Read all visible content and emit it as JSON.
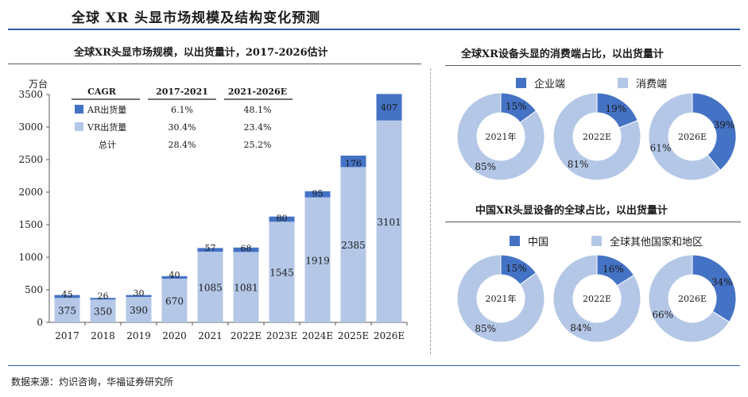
{
  "title": "全球 XR 头显市场规模及结构变化预测",
  "source": "数据来源：灼识咨询，华福证券研究所",
  "colors": {
    "ar": "#4472c4",
    "vr": "#b4c7e7",
    "rule": "#2e5fa8",
    "axis": "#595959"
  },
  "chart_data": [
    {
      "type": "bar",
      "stacked": true,
      "title": "全球XR头显市场规模，以出货量计，2017-2026估计",
      "ylabel": "万台",
      "ylim": [
        0,
        3500
      ],
      "yticks": [
        0,
        500,
        1000,
        1500,
        2000,
        2500,
        3000,
        3500
      ],
      "categories": [
        "2017",
        "2018",
        "2019",
        "2020",
        "2021",
        "2022E",
        "2023E",
        "2024E",
        "2025E",
        "2026E"
      ],
      "series": [
        {
          "name": "VR出货量",
          "values": [
            375,
            350,
            390,
            670,
            1085,
            1081,
            1545,
            1919,
            2385,
            3101
          ]
        },
        {
          "name": "AR出货量",
          "values": [
            45,
            26,
            30,
            40,
            57,
            68,
            80,
            95,
            176,
            407
          ]
        }
      ],
      "cagr_table": {
        "headers": [
          "CAGR",
          "2017-2021",
          "2021-2026E"
        ],
        "rows": [
          {
            "label": "AR出货量",
            "c1": "6.1%",
            "c2": "48.1%"
          },
          {
            "label": "VR出货量",
            "c1": "30.4%",
            "c2": "23.4%"
          },
          {
            "label": "总计",
            "c1": "28.4%",
            "c2": "25.2%"
          }
        ]
      }
    },
    {
      "type": "pie",
      "title": "全球XR设备头显的消费端占比，以出货量计",
      "legend": [
        "企业端",
        "消费端"
      ],
      "charts": [
        {
          "center": "2021年",
          "values": [
            15,
            85
          ],
          "labels": [
            "15%",
            "85%"
          ]
        },
        {
          "center": "2022E",
          "values": [
            19,
            81
          ],
          "labels": [
            "19%",
            "81%"
          ]
        },
        {
          "center": "2026E",
          "values": [
            39,
            61
          ],
          "labels": [
            "39%",
            "61%"
          ]
        }
      ]
    },
    {
      "type": "pie",
      "title": "中国XR头显设备的全球占比，以出货量计",
      "legend": [
        "中国",
        "全球其他国家和地区"
      ],
      "charts": [
        {
          "center": "2021年",
          "values": [
            15,
            85
          ],
          "labels": [
            "15%",
            "85%"
          ]
        },
        {
          "center": "2022E",
          "values": [
            16,
            84
          ],
          "labels": [
            "16%",
            "84%"
          ]
        },
        {
          "center": "2026E",
          "values": [
            34,
            66
          ],
          "labels": [
            "34%",
            "66%"
          ]
        }
      ]
    }
  ]
}
